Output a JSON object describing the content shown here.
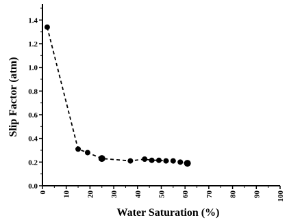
{
  "chart_data": {
    "type": "line",
    "title": "",
    "xlabel": "Water Saturation (%)",
    "ylabel": "Slip Factor (atm)",
    "xlim": [
      0,
      100
    ],
    "ylim": [
      0.0,
      1.5
    ],
    "x_ticks": [
      "0",
      "10",
      "20",
      "30",
      "40",
      "50",
      "60",
      "70",
      "80",
      "90",
      "100"
    ],
    "y_ticks": [
      "0.0",
      "0.2",
      "0.4",
      "0.6",
      "0.8",
      "1.0",
      "1.2",
      "1.4"
    ],
    "line_style": "dashed",
    "marker": "filled-circle",
    "grid": false,
    "legend": "none",
    "series": [
      {
        "x": [
          2,
          15,
          19,
          25,
          37,
          43,
          46,
          49,
          52,
          55,
          58,
          61
        ],
        "y": [
          1.34,
          0.31,
          0.28,
          0.23,
          0.21,
          0.225,
          0.215,
          0.215,
          0.21,
          0.21,
          0.2,
          0.19
        ]
      }
    ]
  }
}
